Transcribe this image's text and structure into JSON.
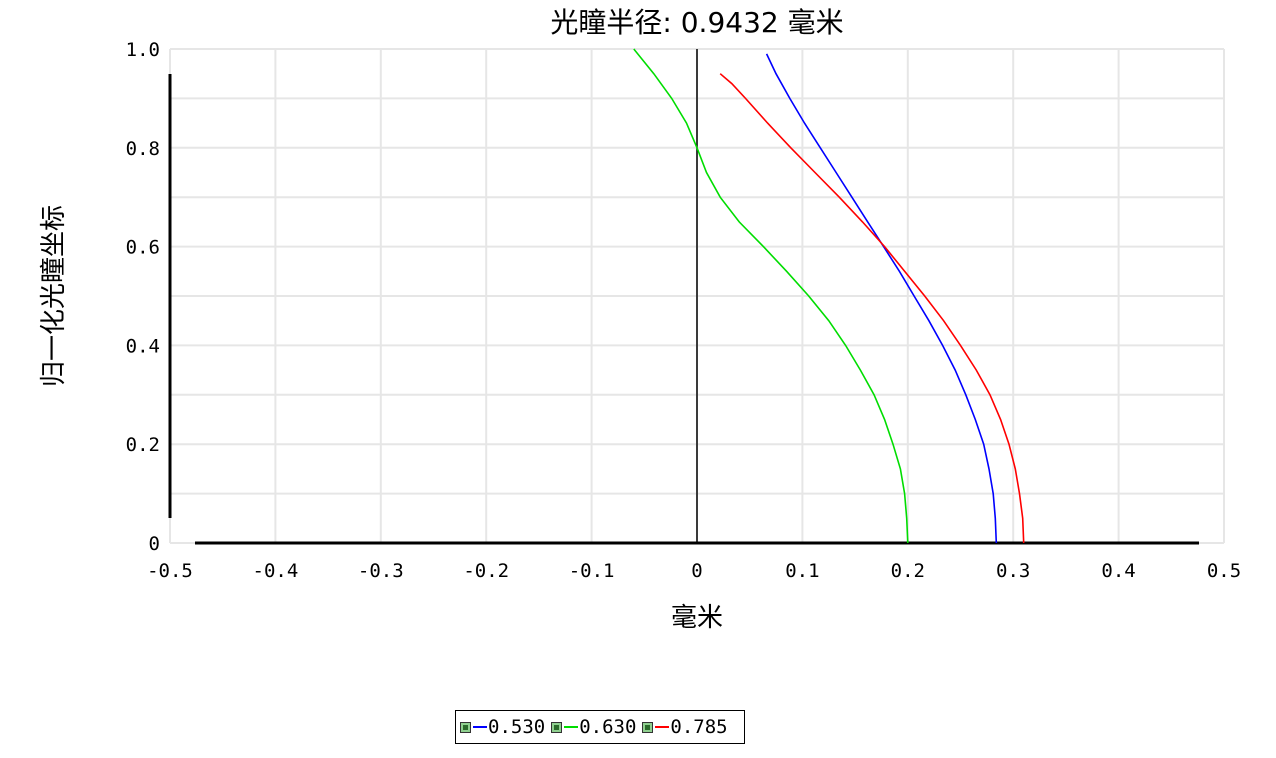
{
  "chart_data": {
    "type": "line",
    "title": "光瞳半径: 0.9432 毫米",
    "xlabel": "毫米",
    "ylabel": "归一化光瞳坐标",
    "xlim": [
      -0.5,
      0.5
    ],
    "ylim": [
      0,
      1.0
    ],
    "x_ticks": [
      "-0.5",
      "-0.4",
      "-0.3",
      "-0.2",
      "-0.1",
      "0",
      "0.1",
      "0.2",
      "0.3",
      "0.4",
      "0.5"
    ],
    "y_ticks": [
      "0",
      "0.2",
      "0.4",
      "0.6",
      "0.8",
      "1.0"
    ],
    "grid": true,
    "legend_position": "bottom-center",
    "series": [
      {
        "name": "0.530",
        "color": "#0000ff",
        "points": [
          [
            0.284,
            0
          ],
          [
            0.283,
            0.05
          ],
          [
            0.281,
            0.1
          ],
          [
            0.277,
            0.15
          ],
          [
            0.272,
            0.2
          ],
          [
            0.264,
            0.25
          ],
          [
            0.255,
            0.3
          ],
          [
            0.245,
            0.35
          ],
          [
            0.233,
            0.4
          ],
          [
            0.22,
            0.45
          ],
          [
            0.206,
            0.5
          ],
          [
            0.192,
            0.55
          ],
          [
            0.177,
            0.6
          ],
          [
            0.162,
            0.65
          ],
          [
            0.147,
            0.7
          ],
          [
            0.132,
            0.75
          ],
          [
            0.117,
            0.8
          ],
          [
            0.102,
            0.85
          ],
          [
            0.088,
            0.9
          ],
          [
            0.075,
            0.95
          ],
          [
            0.066,
            0.99
          ]
        ]
      },
      {
        "name": "0.630",
        "color": "#00dd00",
        "points": [
          [
            0.2,
            0
          ],
          [
            0.199,
            0.05
          ],
          [
            0.197,
            0.1
          ],
          [
            0.193,
            0.15
          ],
          [
            0.186,
            0.2
          ],
          [
            0.178,
            0.25
          ],
          [
            0.168,
            0.3
          ],
          [
            0.155,
            0.35
          ],
          [
            0.141,
            0.4
          ],
          [
            0.125,
            0.45
          ],
          [
            0.106,
            0.5
          ],
          [
            0.085,
            0.55
          ],
          [
            0.063,
            0.6
          ],
          [
            0.04,
            0.65
          ],
          [
            0.022,
            0.7
          ],
          [
            0.009,
            0.75
          ],
          [
            0.0,
            0.8
          ],
          [
            -0.01,
            0.85
          ],
          [
            -0.024,
            0.9
          ],
          [
            -0.041,
            0.95
          ],
          [
            -0.06,
            1.0
          ]
        ]
      },
      {
        "name": "0.785",
        "color": "#ff0000",
        "points": [
          [
            0.31,
            0
          ],
          [
            0.309,
            0.05
          ],
          [
            0.306,
            0.1
          ],
          [
            0.302,
            0.15
          ],
          [
            0.296,
            0.2
          ],
          [
            0.288,
            0.25
          ],
          [
            0.278,
            0.3
          ],
          [
            0.265,
            0.35
          ],
          [
            0.25,
            0.4
          ],
          [
            0.234,
            0.45
          ],
          [
            0.216,
            0.5
          ],
          [
            0.197,
            0.55
          ],
          [
            0.178,
            0.6
          ],
          [
            0.157,
            0.65
          ],
          [
            0.135,
            0.7
          ],
          [
            0.112,
            0.75
          ],
          [
            0.089,
            0.8
          ],
          [
            0.067,
            0.85
          ],
          [
            0.046,
            0.9
          ],
          [
            0.033,
            0.93
          ],
          [
            0.022,
            0.95
          ]
        ]
      }
    ]
  }
}
